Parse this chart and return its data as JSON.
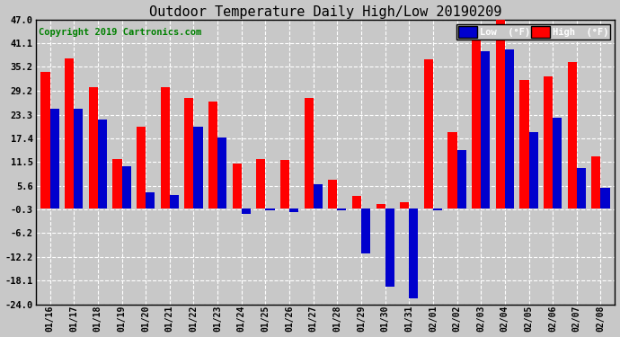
{
  "title": "Outdoor Temperature Daily High/Low 20190209",
  "copyright": "Copyright 2019 Cartronics.com",
  "legend_low": "Low  (°F)",
  "legend_high": "High  (°F)",
  "dates": [
    "01/16",
    "01/17",
    "01/18",
    "01/19",
    "01/20",
    "01/21",
    "01/22",
    "01/23",
    "01/24",
    "01/25",
    "01/26",
    "01/27",
    "01/28",
    "01/29",
    "01/30",
    "01/31",
    "02/01",
    "02/02",
    "02/03",
    "02/04",
    "02/05",
    "02/06",
    "02/07",
    "02/08"
  ],
  "high": [
    34.0,
    37.4,
    30.2,
    12.2,
    20.3,
    30.2,
    27.5,
    26.6,
    11.0,
    12.2,
    12.0,
    27.5,
    7.0,
    3.0,
    1.0,
    1.5,
    37.0,
    19.0,
    44.6,
    47.3,
    32.0,
    32.9,
    36.5,
    13.0
  ],
  "low": [
    24.8,
    24.8,
    22.1,
    10.4,
    4.0,
    3.2,
    20.3,
    17.6,
    -1.5,
    -0.5,
    -1.0,
    6.0,
    -0.5,
    -11.2,
    -19.5,
    -22.5,
    -0.5,
    14.5,
    39.0,
    39.5,
    19.0,
    22.5,
    10.0,
    5.0
  ],
  "ylim": [
    -24.0,
    47.0
  ],
  "yticks": [
    -24.0,
    -18.1,
    -12.2,
    -6.2,
    -0.3,
    5.6,
    11.5,
    17.4,
    23.3,
    29.2,
    35.2,
    41.1,
    47.0
  ],
  "bar_width": 0.38,
  "high_color": "#ff0000",
  "low_color": "#0000cd",
  "bg_color": "#c8c8c8",
  "plot_bg": "#c8c8c8",
  "grid_color": "#ffffff",
  "title_fontsize": 11,
  "copyright_fontsize": 7.5,
  "tick_fontsize": 7,
  "ytick_fontsize": 7.5
}
